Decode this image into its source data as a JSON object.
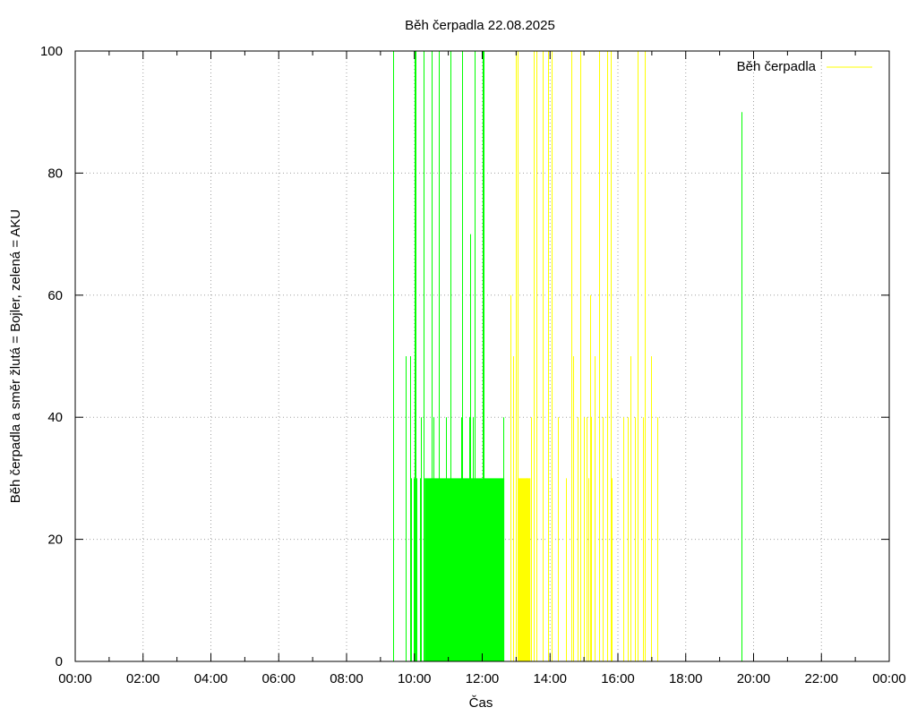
{
  "chart_data": {
    "type": "bar",
    "title": "Běh čerpadla 22.08.2025",
    "xlabel": "Čas",
    "ylabel": "Běh čerpadla a směr žlutá = Bojler, zelená = AKU",
    "xlim_hours": [
      0,
      24
    ],
    "ylim": [
      0,
      100
    ],
    "x_ticks": [
      "00:00",
      "02:00",
      "04:00",
      "06:00",
      "08:00",
      "10:00",
      "12:00",
      "14:00",
      "16:00",
      "18:00",
      "20:00",
      "22:00",
      "00:00"
    ],
    "y_ticks": [
      0,
      20,
      40,
      60,
      80,
      100
    ],
    "grid": true,
    "legend": {
      "position": "top-right",
      "entries": [
        "Běh čerpadla"
      ]
    },
    "series": [
      {
        "name": "Běh čerpadla",
        "color": "#00ff00",
        "direction": "AKU",
        "spikes": [
          {
            "x": 9.37,
            "y": 100
          },
          {
            "x": 9.75,
            "y": 50
          },
          {
            "x": 9.88,
            "y": 50
          },
          {
            "x": 9.9,
            "y": 30
          },
          {
            "x": 9.97,
            "y": 30
          },
          {
            "x": 10.0,
            "y": 100
          },
          {
            "x": 10.03,
            "y": 100
          },
          {
            "x": 10.07,
            "y": 30
          },
          {
            "x": 10.17,
            "y": 30
          },
          {
            "x": 10.2,
            "y": 40
          },
          {
            "x": 10.28,
            "y": 100
          },
          {
            "x": 10.5,
            "y": 100
          },
          {
            "x": 10.55,
            "y": 40
          },
          {
            "x": 10.72,
            "y": 100
          },
          {
            "x": 10.92,
            "y": 40
          },
          {
            "x": 11.07,
            "y": 100
          },
          {
            "x": 11.37,
            "y": 40
          },
          {
            "x": 11.4,
            "y": 100
          },
          {
            "x": 11.63,
            "y": 40
          },
          {
            "x": 11.65,
            "y": 70
          },
          {
            "x": 11.72,
            "y": 40
          },
          {
            "x": 11.78,
            "y": 100
          },
          {
            "x": 12.0,
            "y": 100
          },
          {
            "x": 12.05,
            "y": 100
          },
          {
            "x": 12.62,
            "y": 40
          },
          {
            "x": 19.65,
            "y": 90
          }
        ],
        "blocks": [
          {
            "x0": 10.3,
            "x1": 12.65,
            "y": 30
          }
        ]
      },
      {
        "name": "",
        "color": "#ffff00",
        "direction": "Bojler",
        "spikes": [
          {
            "x": 12.83,
            "y": 60
          },
          {
            "x": 12.9,
            "y": 50
          },
          {
            "x": 13.0,
            "y": 100
          },
          {
            "x": 13.05,
            "y": 100
          },
          {
            "x": 13.3,
            "y": 30
          },
          {
            "x": 13.45,
            "y": 40
          },
          {
            "x": 13.52,
            "y": 100
          },
          {
            "x": 13.6,
            "y": 100
          },
          {
            "x": 13.78,
            "y": 100
          },
          {
            "x": 13.93,
            "y": 100
          },
          {
            "x": 14.05,
            "y": 100
          },
          {
            "x": 14.23,
            "y": 40
          },
          {
            "x": 14.47,
            "y": 30
          },
          {
            "x": 14.62,
            "y": 100
          },
          {
            "x": 14.68,
            "y": 50
          },
          {
            "x": 14.8,
            "y": 40
          },
          {
            "x": 14.88,
            "y": 100
          },
          {
            "x": 15.0,
            "y": 40
          },
          {
            "x": 15.07,
            "y": 40
          },
          {
            "x": 15.12,
            "y": 30
          },
          {
            "x": 15.17,
            "y": 60
          },
          {
            "x": 15.22,
            "y": 40
          },
          {
            "x": 15.32,
            "y": 50
          },
          {
            "x": 15.45,
            "y": 100
          },
          {
            "x": 15.55,
            "y": 40
          },
          {
            "x": 15.68,
            "y": 100
          },
          {
            "x": 15.78,
            "y": 100
          },
          {
            "x": 15.82,
            "y": 30
          },
          {
            "x": 16.15,
            "y": 40
          },
          {
            "x": 16.3,
            "y": 40
          },
          {
            "x": 16.37,
            "y": 50
          },
          {
            "x": 16.5,
            "y": 40
          },
          {
            "x": 16.57,
            "y": 100
          },
          {
            "x": 16.73,
            "y": 40
          },
          {
            "x": 16.8,
            "y": 100
          },
          {
            "x": 16.98,
            "y": 50
          },
          {
            "x": 17.17,
            "y": 40
          }
        ],
        "blocks": [
          {
            "x0": 13.07,
            "x1": 13.42,
            "y": 30
          }
        ]
      }
    ]
  }
}
